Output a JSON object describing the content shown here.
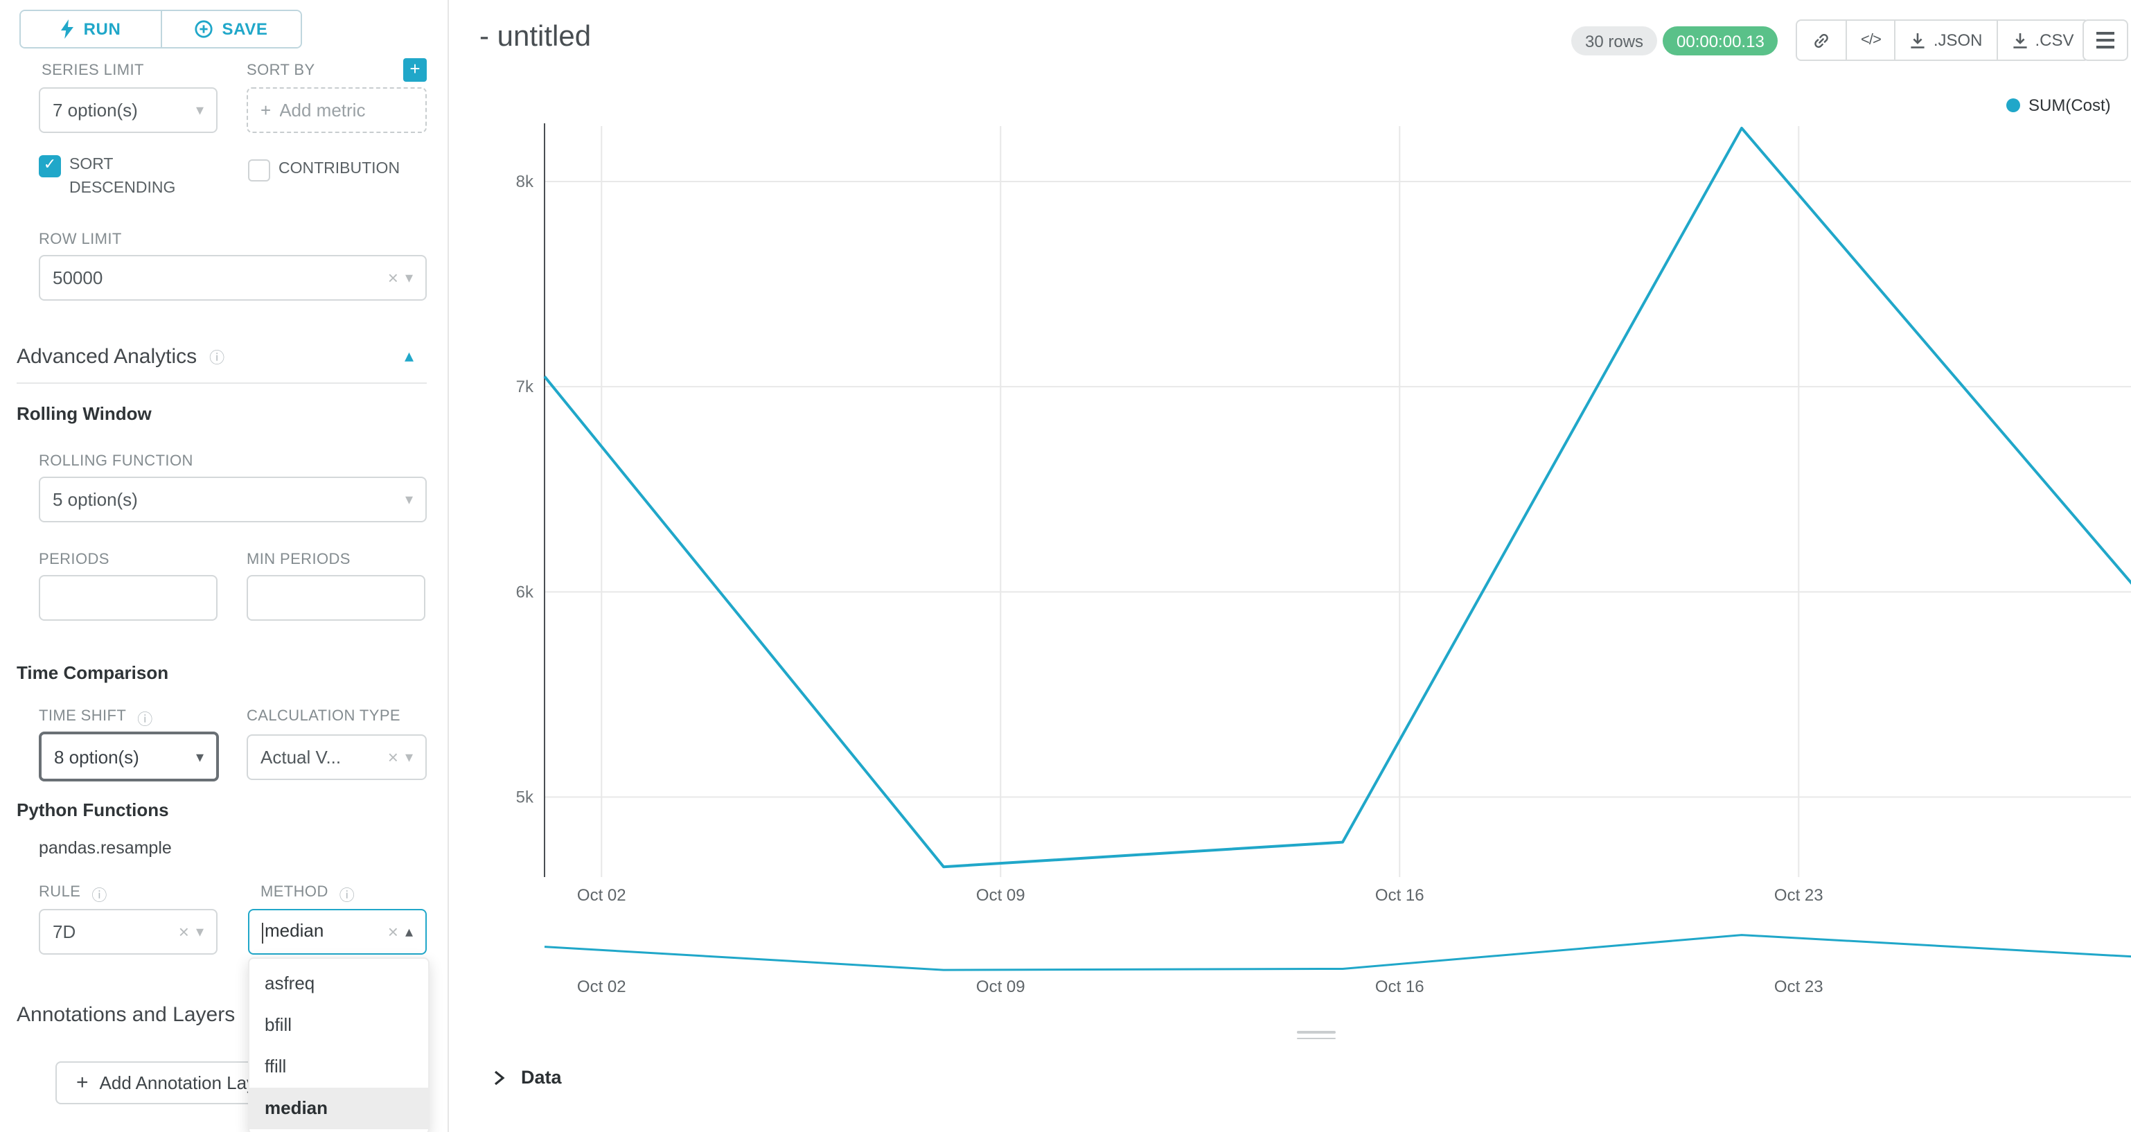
{
  "glyphs": {
    "info": "ⓘ",
    "chevron_down": "▾",
    "chevron_up": "▴",
    "clear": "×",
    "check": "✓",
    "plus": "+",
    "code": "</>"
  },
  "sidebar": {
    "run_button": "RUN",
    "save_button": "SAVE",
    "series_limit": {
      "label": "SERIES LIMIT",
      "value": "7 option(s)"
    },
    "sort_by": {
      "label": "SORT BY",
      "placeholder": "Add metric"
    },
    "sort_descending": {
      "label": "SORT DESCENDING",
      "checked": true
    },
    "contribution": {
      "label": "CONTRIBUTION",
      "checked": false
    },
    "row_limit": {
      "label": "ROW LIMIT",
      "value": "50000"
    },
    "advanced_analytics_title": "Advanced Analytics",
    "rolling_window": {
      "title": "Rolling Window",
      "rolling_function_label": "ROLLING FUNCTION",
      "rolling_function_value": "5 option(s)",
      "periods_label": "PERIODS",
      "min_periods_label": "MIN PERIODS"
    },
    "time_comparison": {
      "title": "Time Comparison",
      "time_shift_label": "TIME SHIFT",
      "time_shift_value": "8 option(s)",
      "calculation_type_label": "CALCULATION TYPE",
      "calculation_type_value": "Actual V..."
    },
    "python_functions": {
      "title": "Python Functions",
      "subtitle": "pandas.resample",
      "rule_label": "RULE",
      "rule_value": "7D",
      "method": {
        "label": "METHOD",
        "value": "median",
        "selected": "median",
        "options": [
          "asfreq",
          "bfill",
          "ffill",
          "median"
        ]
      }
    },
    "annotations": {
      "title": "Annotations and Layers",
      "add_button": "Add Annotation Layer"
    }
  },
  "header": {
    "title": "- untitled",
    "rows_badge": "30 rows",
    "duration_badge": "00:00:00.13",
    "json_button": ".JSON",
    "csv_button": ".CSV"
  },
  "chart_data": {
    "type": "line",
    "title": "",
    "legend": "SUM(Cost)",
    "color": "#20A7C9",
    "x_unit": "days since Oct 01",
    "xlim": [
      0,
      28
    ],
    "ylim": [
      4610,
      8270
    ],
    "preview_ylim": [
      4100,
      8800
    ],
    "grid": true,
    "legend_position": "top-right",
    "x_ticks": [
      {
        "day": 1,
        "label": "Oct 02"
      },
      {
        "day": 8,
        "label": "Oct 09"
      },
      {
        "day": 15,
        "label": "Oct 16"
      },
      {
        "day": 22,
        "label": "Oct 23"
      }
    ],
    "y_ticks": [
      {
        "value": 5000,
        "label": "5k"
      },
      {
        "value": 6000,
        "label": "6k"
      },
      {
        "value": 7000,
        "label": "7k"
      },
      {
        "value": 8000,
        "label": "8k"
      }
    ],
    "series": [
      {
        "name": "SUM(Cost)",
        "x_days": [
          0,
          7,
          14,
          21,
          28
        ],
        "x_dates": [
          "Oct 01",
          "Oct 08",
          "Oct 15",
          "Oct 22",
          "Oct 29"
        ],
        "values": [
          7050,
          4660,
          4780,
          8260,
          5990
        ]
      }
    ]
  },
  "data_panel": {
    "title": "Data"
  }
}
